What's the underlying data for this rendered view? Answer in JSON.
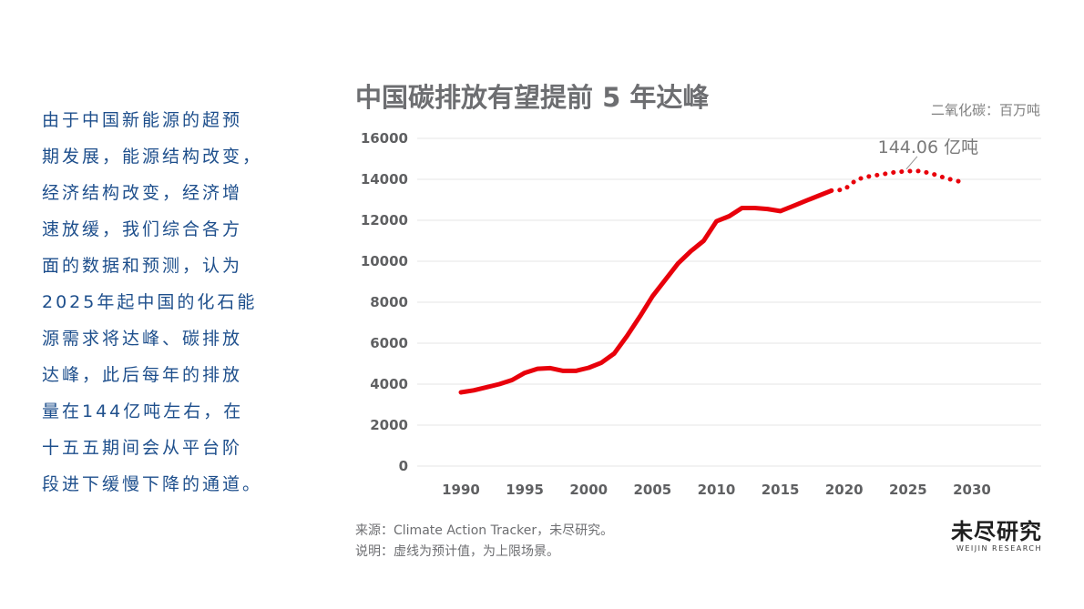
{
  "side_text": {
    "lines": [
      "由于中国新能源的超预",
      "期发展，能源结构改变，",
      "经济结构改变，经济增",
      "速放缓，我们综合各方",
      "面的数据和预测，认为",
      "2025年起中国的化石能",
      "源需求将达峰、碳排放",
      "达峰，此后每年的排放",
      "量在144亿吨左右，在",
      "十五五期间会从平台阶",
      "段进下缓慢下降的通道。"
    ]
  },
  "chart_data": {
    "type": "line",
    "title": "中国碳排放有望提前 5 年达峰",
    "unit": "二氧化碳：百万吨",
    "xlabel": "",
    "ylabel": "",
    "x_ticks": [
      "1990",
      "1995",
      "2000",
      "2005",
      "2010",
      "2015",
      "2020",
      "2025",
      "2030"
    ],
    "y_ticks": [
      "0",
      "2000",
      "4000",
      "6000",
      "8000",
      "10000",
      "12000",
      "14000",
      "16000"
    ],
    "xlim": [
      1990,
      2030
    ],
    "ylim": [
      0,
      16000
    ],
    "grid": true,
    "series": [
      {
        "style": "solid",
        "color": "#e8000b",
        "points": [
          [
            1990,
            3600
          ],
          [
            1991,
            3700
          ],
          [
            1992,
            3850
          ],
          [
            1993,
            4000
          ],
          [
            1994,
            4200
          ],
          [
            1995,
            4550
          ],
          [
            1996,
            4750
          ],
          [
            1997,
            4780
          ],
          [
            1998,
            4650
          ],
          [
            1999,
            4650
          ],
          [
            2000,
            4800
          ],
          [
            2001,
            5050
          ],
          [
            2002,
            5500
          ],
          [
            2003,
            6350
          ],
          [
            2004,
            7300
          ],
          [
            2005,
            8300
          ],
          [
            2006,
            9100
          ],
          [
            2007,
            9900
          ],
          [
            2008,
            10500
          ],
          [
            2009,
            11000
          ],
          [
            2010,
            11950
          ],
          [
            2011,
            12200
          ],
          [
            2012,
            12600
          ],
          [
            2013,
            12600
          ],
          [
            2014,
            12550
          ],
          [
            2015,
            12450
          ],
          [
            2016,
            12700
          ],
          [
            2017,
            12950
          ],
          [
            2018,
            13200
          ],
          [
            2019,
            13450
          ]
        ]
      },
      {
        "style": "dotted",
        "color": "#e8000b",
        "points": [
          [
            2019,
            13450
          ],
          [
            2020,
            13500
          ],
          [
            2021,
            14000
          ],
          [
            2022,
            14150
          ],
          [
            2023,
            14250
          ],
          [
            2024,
            14350
          ],
          [
            2025,
            14400
          ],
          [
            2026,
            14406
          ],
          [
            2027,
            14250
          ],
          [
            2028,
            14050
          ],
          [
            2029,
            13900
          ]
        ]
      }
    ],
    "annotations": [
      {
        "text": "144.06 亿吨",
        "x": 2026,
        "y": 14406
      }
    ]
  },
  "footer": {
    "source": "来源：Climate Action Tracker，未尽研究。",
    "explanation": "说明：虚线为预计值，为上限场景。"
  },
  "logo": {
    "cn": "未尽研究",
    "en": "WEIJIN RESEARCH"
  }
}
